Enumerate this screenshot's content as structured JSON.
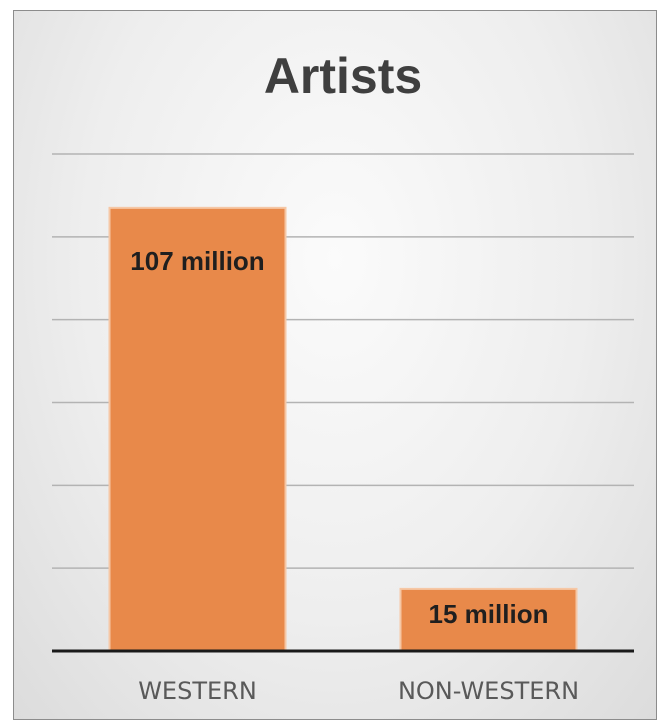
{
  "chart_data": {
    "type": "bar",
    "title": "Artists",
    "categories": [
      "WESTERN",
      "NON-WESTERN"
    ],
    "values": [
      107,
      15
    ],
    "data_labels": [
      "107 million",
      "15 million"
    ],
    "unit": "million",
    "ylim": [
      0,
      120
    ],
    "gridlines": true,
    "legend": "none",
    "bar_color": "#E8894A",
    "bar_border_color": "#F6C7A5",
    "axis_color": "#1a1a1a",
    "grid_color": "#b3b3b3"
  }
}
